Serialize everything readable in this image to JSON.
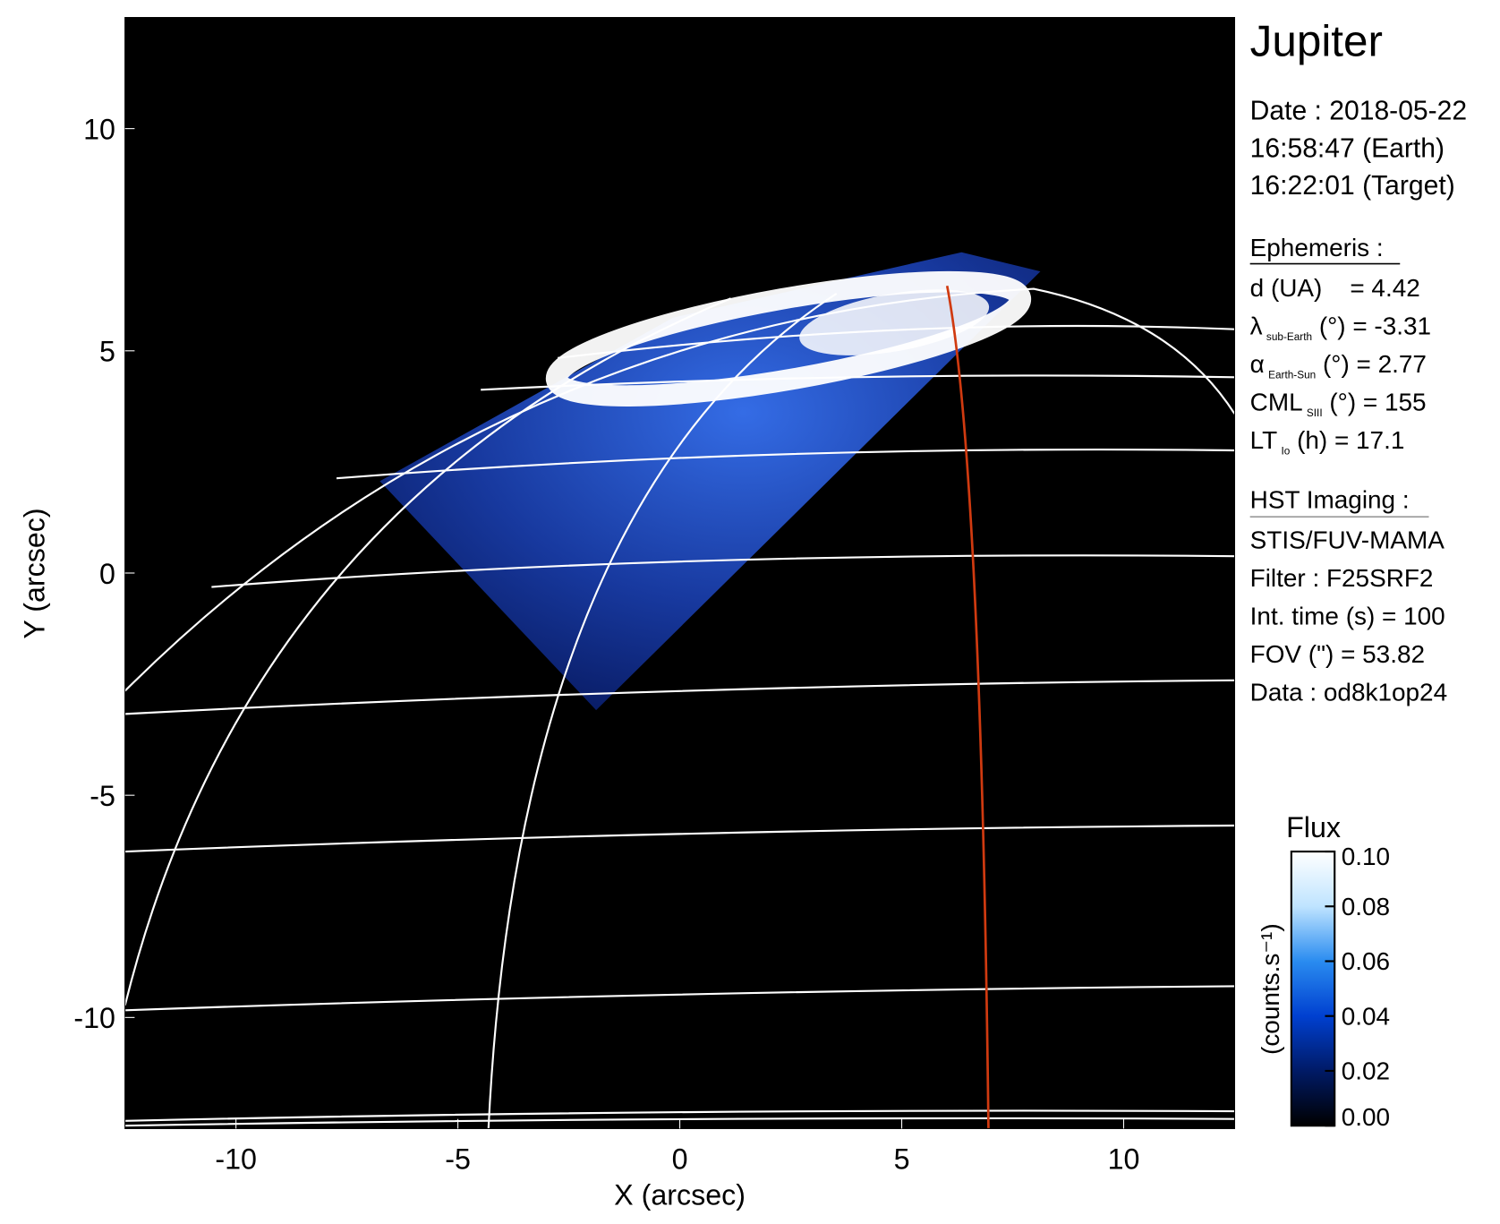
{
  "chart_data": {
    "type": "image",
    "title": "Jupiter",
    "xlabel": "X (arcsec)",
    "ylabel": "Y (arcsec)",
    "xlim": [
      -12.5,
      12.5
    ],
    "ylim": [
      -12.5,
      12.5
    ],
    "xticks": [
      -10,
      -5,
      0,
      5,
      10
    ],
    "yticks": [
      -10,
      -5,
      0,
      5,
      10
    ],
    "colorbar": {
      "title": "Flux",
      "label": "(counts.s⁻¹)",
      "clim": [
        0,
        0.1
      ],
      "ticks": [
        {
          "value": 0,
          "label": "0.00"
        },
        {
          "value": 0.02,
          "label": "0.02"
        },
        {
          "value": 0.04,
          "label": "0.04"
        },
        {
          "value": 0.06,
          "label": "0.06"
        },
        {
          "value": 0.08,
          "label": "0.08"
        },
        {
          "value": 0.1,
          "label": "0.10"
        }
      ],
      "colors": [
        "#000000",
        "#001a66",
        "#0040d0",
        "#2a8cf0",
        "#bfe4ff",
        "#ffffff"
      ]
    },
    "info": {
      "date": [
        "Date : 2018-05-22",
        "16:58:47 (Earth)",
        "16:22:01 (Target)"
      ],
      "ephemeris": {
        "heading": "Ephemeris :",
        "rows": [
          {
            "main": "d (UA)    = 4.42"
          },
          {
            "main": "λ",
            "sub": "sub-Earth",
            "rest": " (°) = -3.31"
          },
          {
            "main": "α",
            "sub": "Earth-Sun",
            "rest": " (°) = 2.77"
          },
          {
            "main": "CML",
            "sub": "SIII",
            "rest": " (°) = 155"
          },
          {
            "main": "LT",
            "sub": "Io",
            "rest": " (h) = 17.1"
          }
        ]
      },
      "imaging": {
        "heading": "HST Imaging :",
        "rows": [
          "STIS/FUV-MAMA",
          "Filter : F25SRF2",
          "Int. time (s) = 100",
          "FOV (\") = 53.82",
          "Data : od8k1op24"
        ]
      }
    }
  }
}
